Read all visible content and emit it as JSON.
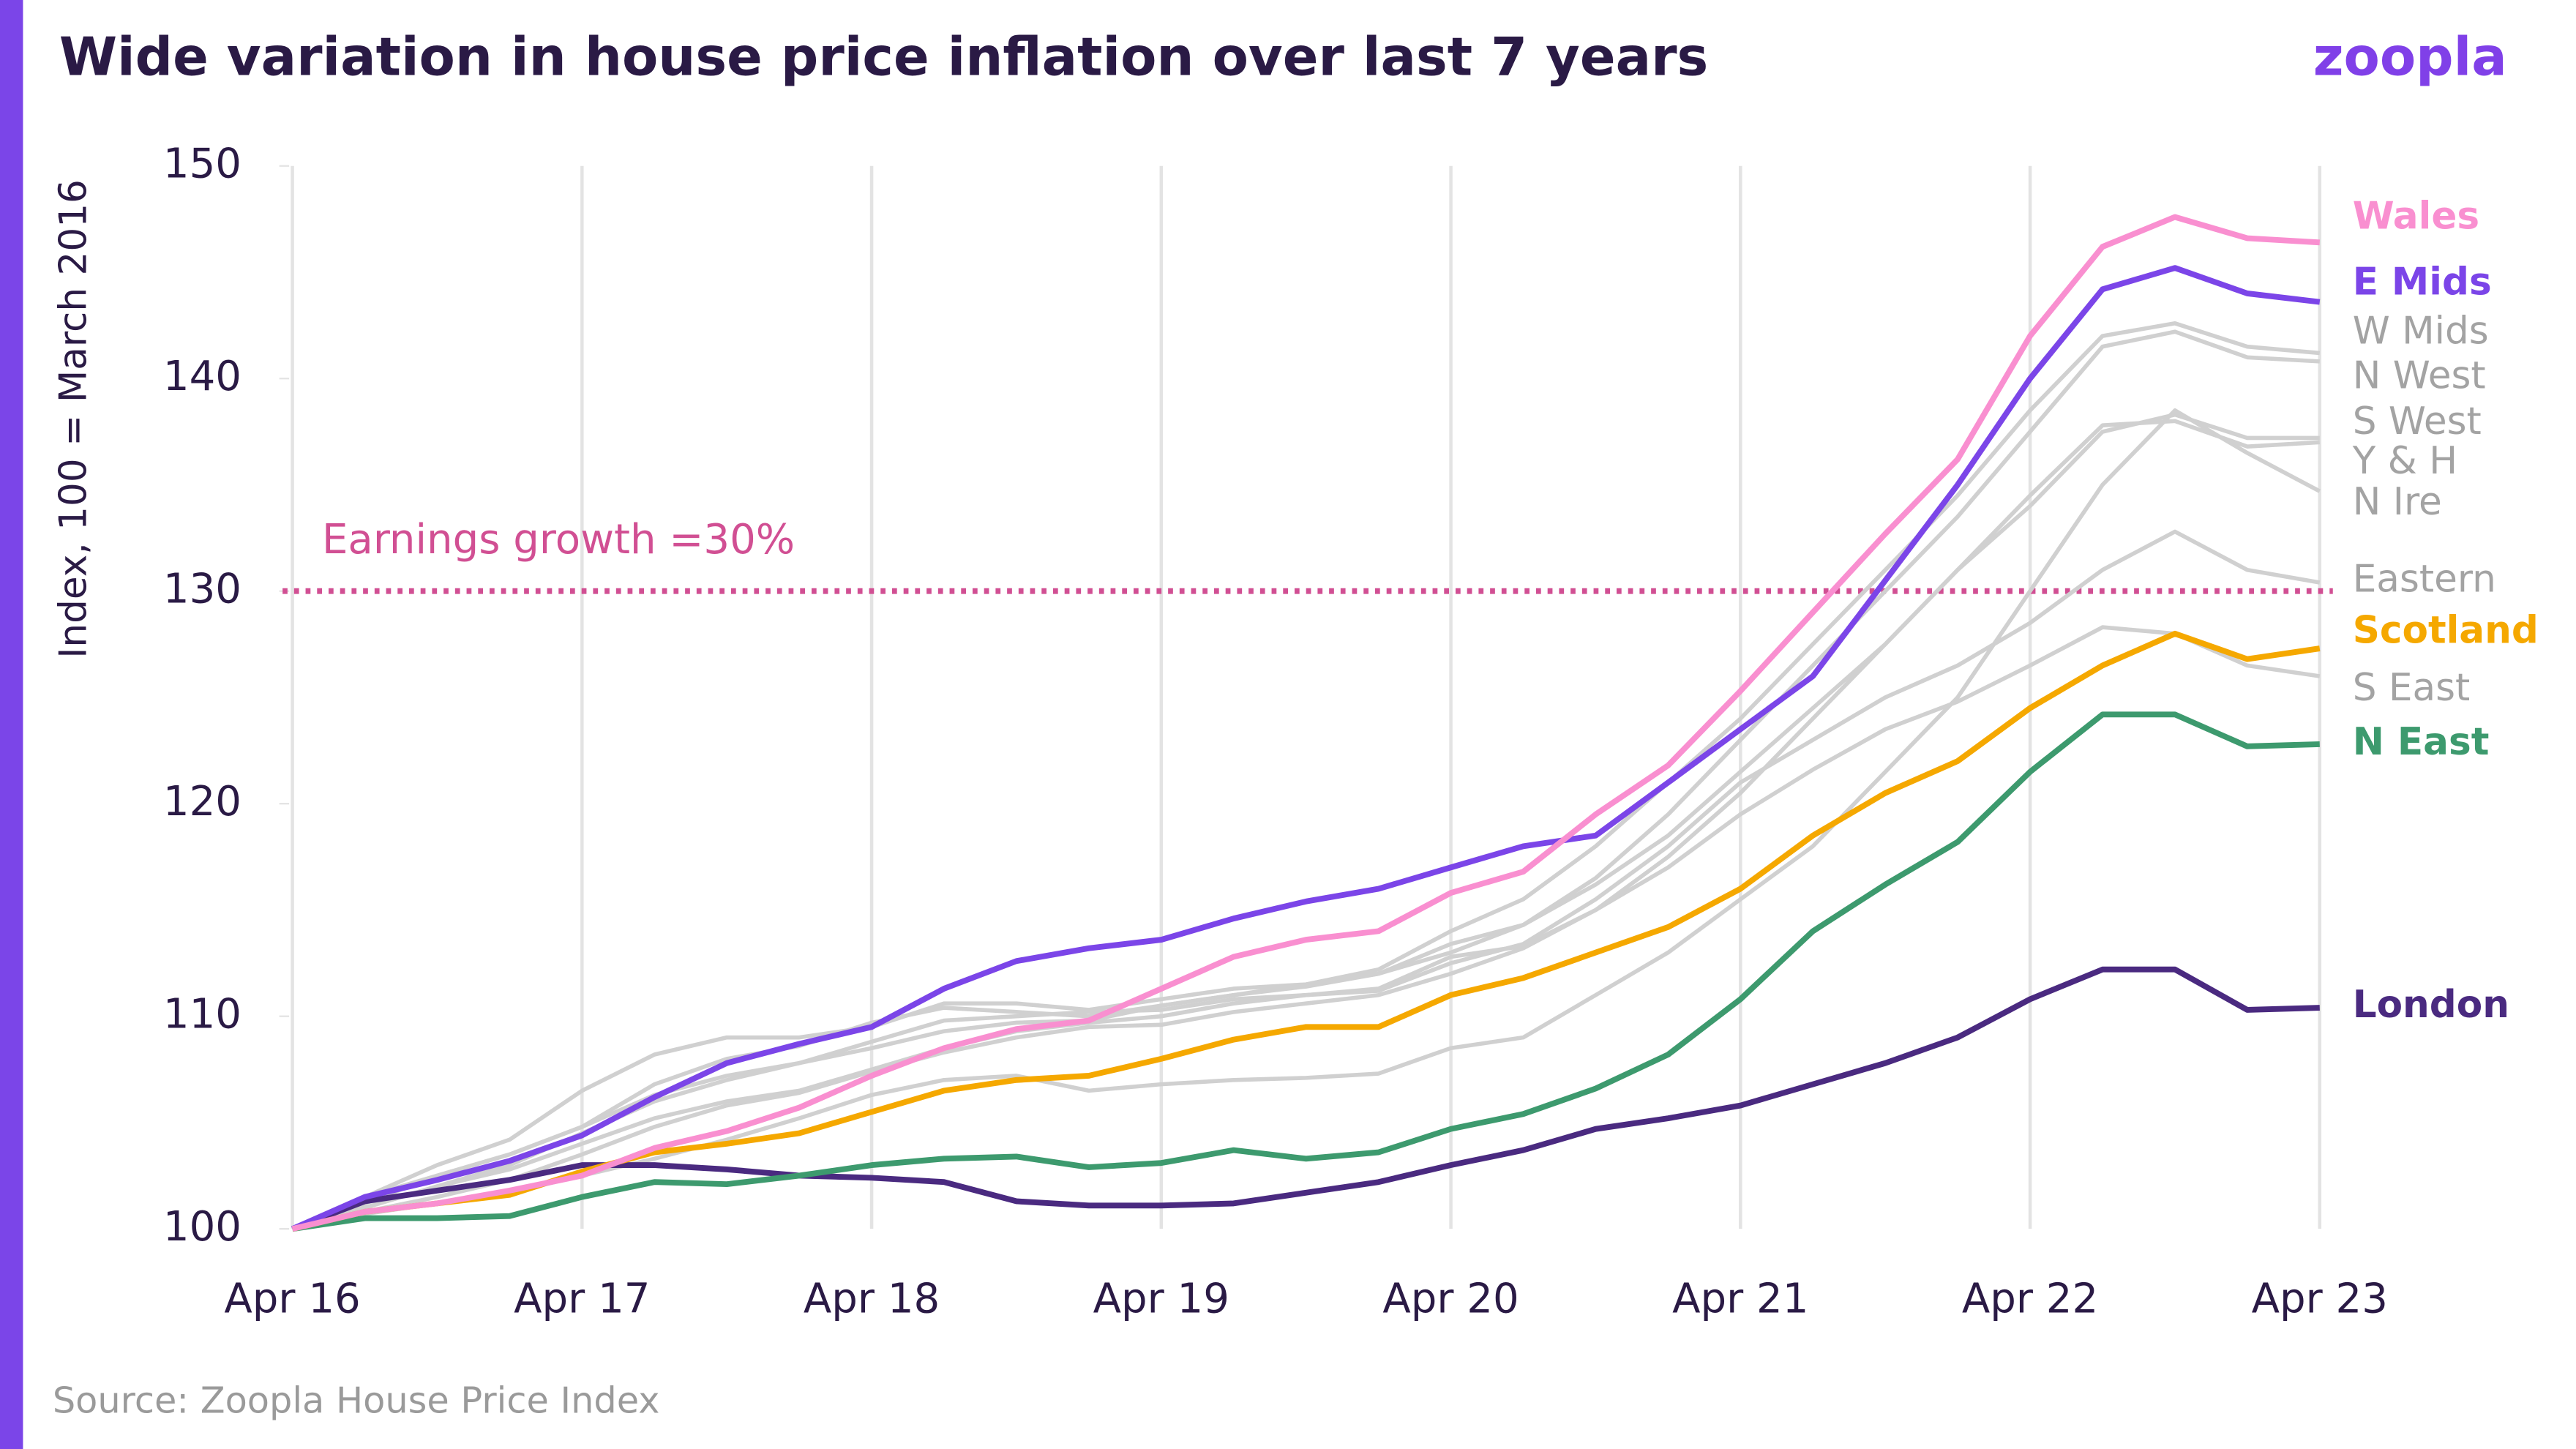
{
  "chart_data": {
    "type": "line",
    "title": "Wide variation in house price inflation over last 7 years",
    "brand": "zoopla",
    "y_label": "Index, 100 = March 2016",
    "source": "Source: Zoopla House Price Index",
    "categories": [
      "Apr 16",
      null,
      null,
      null,
      "Apr 17",
      null,
      null,
      null,
      "Apr 18",
      null,
      null,
      null,
      "Apr 19",
      null,
      null,
      null,
      "Apr 20",
      null,
      null,
      null,
      "Apr 21",
      null,
      null,
      null,
      "Apr 22",
      null,
      null,
      null,
      "Apr 23"
    ],
    "ylim": [
      100,
      150
    ],
    "yticks": [
      100,
      110,
      120,
      130,
      140,
      150
    ],
    "grid": true,
    "reference_line": {
      "value": 130,
      "label": "Earnings growth =30%",
      "color": "#d14f93"
    },
    "series": [
      {
        "name": "W Mids",
        "color": "#d0d0d0",
        "label_color": "#a3a3a3",
        "values": [
          100,
          101.5,
          102.5,
          103.5,
          104.8,
          106.8,
          108,
          108.6,
          109.7,
          110.4,
          110.2,
          110,
          110.5,
          111,
          111.5,
          112.2,
          114,
          115.5,
          118,
          121,
          124,
          127.5,
          131,
          134.5,
          138.5,
          142,
          142.6,
          141.5,
          141.2
        ]
      },
      {
        "name": "N West",
        "color": "#d0d0d0",
        "label_color": "#a3a3a3",
        "values": [
          100,
          101,
          102,
          103,
          104.5,
          106,
          107,
          107.8,
          108.5,
          109.3,
          109.7,
          109.8,
          110.5,
          111,
          111.4,
          112,
          113,
          114.3,
          116.5,
          119.5,
          123,
          126.5,
          130,
          133.5,
          137.5,
          141.5,
          142.2,
          141,
          140.8
        ]
      },
      {
        "name": "S West",
        "color": "#d0d0d0",
        "label_color": "#a3a3a3",
        "values": [
          100,
          101.5,
          103,
          104.2,
          106.5,
          108.2,
          109,
          109,
          109.5,
          110.6,
          110.6,
          110.3,
          110.8,
          111.3,
          111.5,
          112,
          113.4,
          114.3,
          116.2,
          118.5,
          121.5,
          124.5,
          127.5,
          131,
          134,
          137.5,
          138.3,
          137.2,
          137.2
        ]
      },
      {
        "name": "Y & H",
        "color": "#d0d0d0",
        "label_color": "#a3a3a3",
        "values": [
          100,
          100.8,
          101.5,
          102.3,
          103.5,
          104.8,
          105.8,
          106.4,
          107.4,
          108.3,
          109,
          109.5,
          109.6,
          110.2,
          110.6,
          111,
          112,
          113.2,
          115,
          117.5,
          120.5,
          124,
          127.5,
          131,
          134.5,
          137.8,
          138,
          136.8,
          137
        ]
      },
      {
        "name": "N Ire",
        "color": "#d0d0d0",
        "label_color": "#a3a3a3",
        "values": [
          100,
          100.7,
          101.2,
          101.7,
          102.5,
          103.3,
          104.2,
          105.2,
          106.3,
          107,
          107.2,
          106.5,
          106.8,
          107,
          107.1,
          107.3,
          108.5,
          109,
          111,
          113,
          115.5,
          118,
          121.5,
          125,
          130,
          135,
          138.5,
          136.5,
          134.7
        ]
      },
      {
        "name": "Eastern",
        "color": "#d0d0d0",
        "label_color": "#a3a3a3",
        "values": [
          100,
          101.2,
          102.5,
          103.5,
          104.8,
          106.3,
          107.2,
          107.8,
          108.8,
          109.8,
          110,
          110.2,
          110.3,
          110.8,
          111,
          111.2,
          112.5,
          113.4,
          115.5,
          118,
          121,
          123,
          125,
          126.5,
          128.5,
          131,
          132.8,
          131,
          130.4
        ]
      },
      {
        "name": "S East",
        "color": "#d0d0d0",
        "label_color": "#a3a3a3",
        "values": [
          100,
          101,
          102,
          102.8,
          104,
          105.2,
          106,
          106.5,
          107.5,
          108.5,
          109.3,
          109.7,
          110,
          110.6,
          111,
          111.3,
          112.8,
          113.3,
          115,
          117,
          119.5,
          121.6,
          123.5,
          124.8,
          126.5,
          128.3,
          128,
          126.5,
          126
        ]
      },
      {
        "name": "London",
        "color": "#4a2a80",
        "label_color": "#4a2a80",
        "values": [
          100,
          101.3,
          101.8,
          102.3,
          103,
          103,
          102.8,
          102.5,
          102.4,
          102.2,
          101.3,
          101.1,
          101.1,
          101.2,
          101.7,
          102.2,
          103,
          103.7,
          104.7,
          105.2,
          105.8,
          106.8,
          107.8,
          109,
          110.8,
          112.2,
          112.2,
          110.3,
          110.4
        ]
      },
      {
        "name": "N East",
        "color": "#3d9a6e",
        "label_color": "#3d9a6e",
        "values": [
          100,
          100.5,
          100.5,
          100.6,
          101.5,
          102.2,
          102.1,
          102.5,
          103,
          103.3,
          103.4,
          102.9,
          103.1,
          103.7,
          103.3,
          103.6,
          104.7,
          105.4,
          106.6,
          108.2,
          110.8,
          114,
          116.2,
          118.2,
          121.5,
          124.2,
          124.2,
          122.7,
          122.8
        ]
      },
      {
        "name": "Scotland",
        "color": "#f5a800",
        "label_color": "#f5a800",
        "values": [
          100,
          100.8,
          101.2,
          101.6,
          102.7,
          103.6,
          104,
          104.5,
          105.5,
          106.5,
          107,
          107.2,
          108,
          108.9,
          109.5,
          109.5,
          111,
          111.8,
          113,
          114.2,
          116,
          118.5,
          120.5,
          122,
          124.5,
          126.5,
          128,
          126.8,
          127.3
        ]
      },
      {
        "name": "E Mids",
        "color": "#7b45e8",
        "label_color": "#7b45e8",
        "values": [
          100,
          101.5,
          102.3,
          103.2,
          104.4,
          106.2,
          107.8,
          108.7,
          109.5,
          111.3,
          112.6,
          113.2,
          113.6,
          114.6,
          115.4,
          116,
          117,
          118,
          118.5,
          121,
          123.5,
          126,
          130.5,
          135,
          140,
          144.2,
          145.2,
          144,
          143.6
        ]
      },
      {
        "name": "Wales",
        "color": "#f98fd0",
        "label_color": "#f98fd0",
        "values": [
          100,
          100.8,
          101.2,
          101.8,
          102.5,
          103.8,
          104.6,
          105.7,
          107.2,
          108.5,
          109.4,
          109.8,
          111.3,
          112.8,
          113.6,
          114,
          115.8,
          116.8,
          119.5,
          121.8,
          125.3,
          129,
          132.7,
          136.2,
          142,
          146.2,
          147.6,
          146.6,
          146.4
        ]
      }
    ]
  }
}
